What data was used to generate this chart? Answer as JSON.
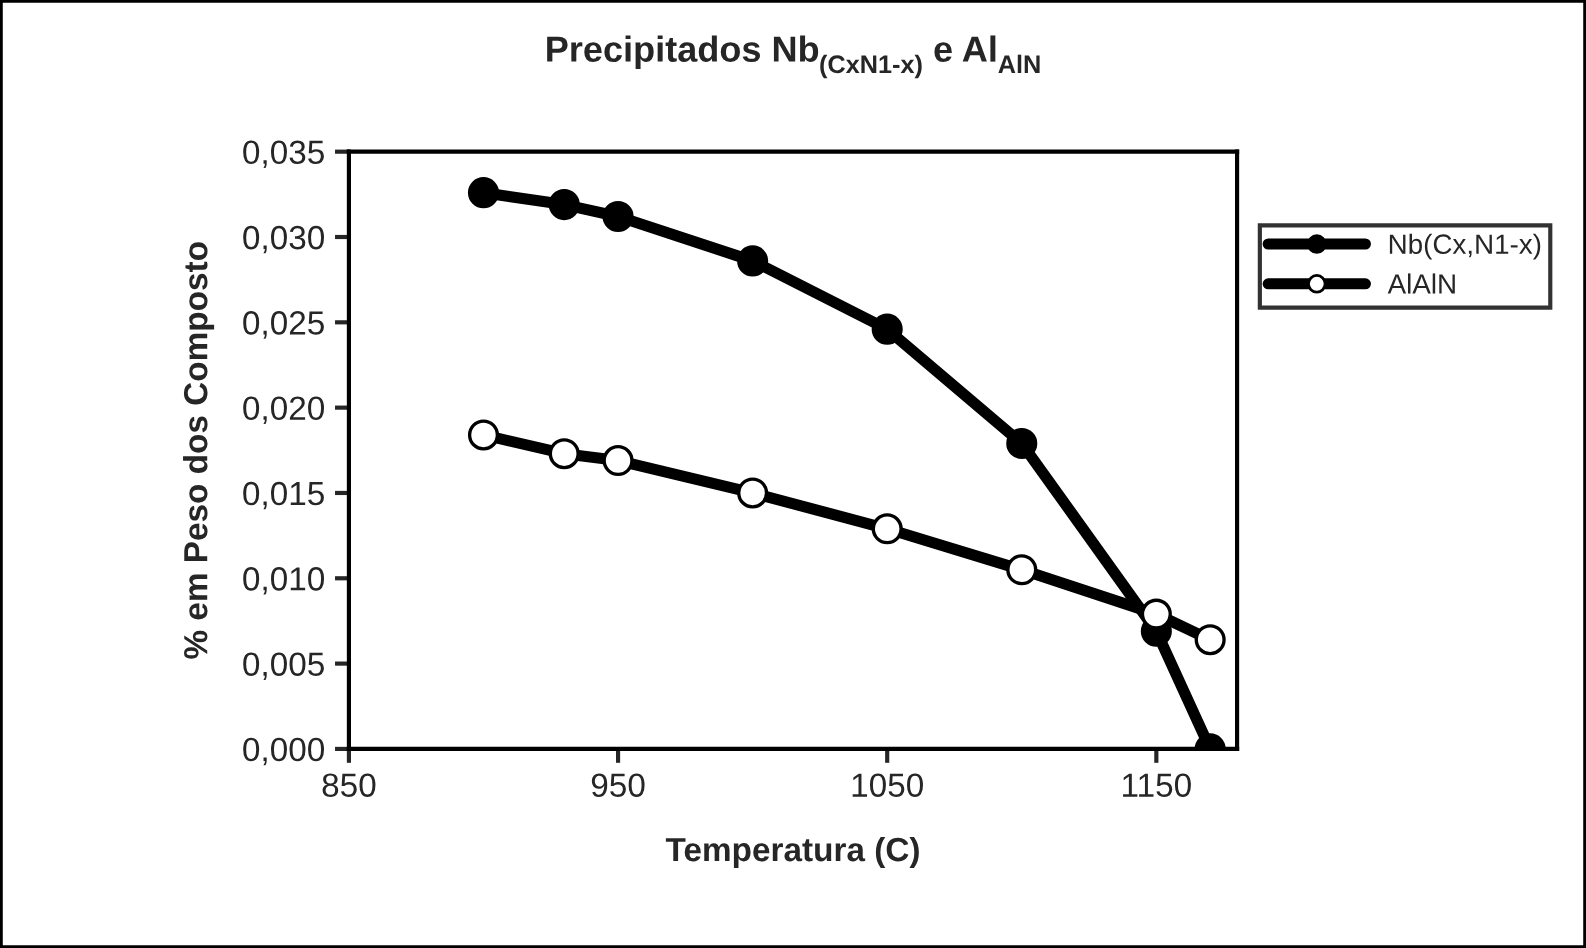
{
  "chart_data": {
    "type": "line",
    "title": "Precipitados Nb$_{(CxN1-x)}$ e Al$_{AlN}$",
    "xlabel": "Temperatura (C)",
    "ylabel": "% em Peso dos Composto",
    "x": [
      900,
      930,
      950,
      1000,
      1050,
      1100,
      1150,
      1170
    ],
    "series": [
      {
        "name": "Nb(Cx,N1-x)",
        "color": "#000000",
        "values": [
          0.0326,
          0.0319,
          0.0312,
          0.0286,
          0.0246,
          0.0179,
          0.0069,
          0.0
        ]
      },
      {
        "name": "AlAlN",
        "color": "#000000",
        "values": [
          0.0184,
          0.0173,
          0.0169,
          0.015,
          0.0129,
          0.0105,
          0.0079,
          0.0064
        ]
      }
    ],
    "xlim": [
      850,
      1180
    ],
    "xticks": [
      850,
      950,
      1050,
      1150
    ],
    "ylim": [
      0,
      0.035
    ],
    "yticks": [
      {
        "value": 0,
        "label": "0,000"
      },
      {
        "value": 0.005,
        "label": "0,005"
      },
      {
        "value": 0.01,
        "label": "0,010"
      },
      {
        "value": 0.015,
        "label": "0,015"
      },
      {
        "value": 0.02,
        "label": "0,020"
      },
      {
        "value": 0.025,
        "label": "0,025"
      },
      {
        "value": 0.03,
        "label": "0,030"
      },
      {
        "value": 0.035,
        "label": "0,035"
      }
    ],
    "grid": false,
    "legend": "top right",
    "marker": "circle",
    "line_style": "solid"
  }
}
